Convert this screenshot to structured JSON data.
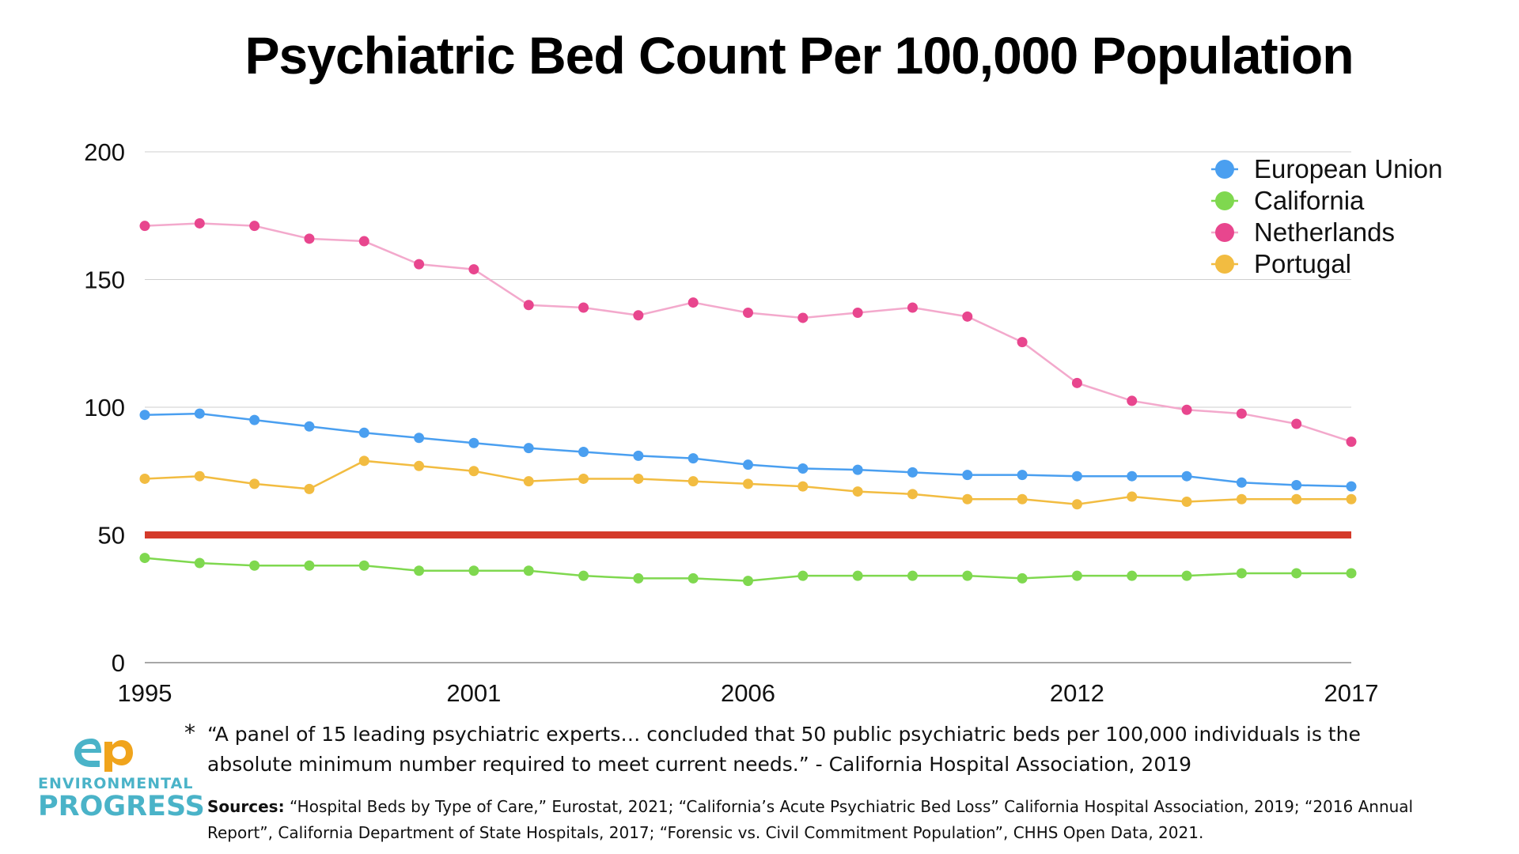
{
  "chart_data": {
    "type": "line",
    "title": "Psychiatric Bed Count Per 100,000 Population",
    "xlabel": "",
    "ylabel": "",
    "x": [
      1995,
      1996,
      1997,
      1998,
      1999,
      2000,
      2001,
      2002,
      2003,
      2004,
      2005,
      2006,
      2007,
      2008,
      2009,
      2010,
      2011,
      2012,
      2013,
      2014,
      2015,
      2016,
      2017
    ],
    "x_tick_labels": [
      "1995",
      "2001",
      "2006",
      "2012",
      "2017"
    ],
    "y_tick_labels": [
      "0",
      "50",
      "100",
      "150",
      "200"
    ],
    "ylim": [
      0,
      200
    ],
    "grid": true,
    "legend_position": "top-right",
    "series": [
      {
        "name": "European Union",
        "color": "#4a9ff0",
        "values": [
          97,
          97.5,
          95,
          92.5,
          90,
          88,
          86,
          84,
          82.5,
          81,
          80,
          77.5,
          76,
          75.5,
          74.5,
          73.5,
          73.5,
          73,
          73,
          73,
          70.5,
          69.5,
          69
        ]
      },
      {
        "name": "California",
        "color": "#7fd84f",
        "values": [
          41,
          39,
          38,
          38,
          38,
          36,
          36,
          36,
          34,
          33,
          33,
          32,
          34,
          34,
          34,
          34,
          33,
          34,
          34,
          34,
          35,
          35,
          35
        ]
      },
      {
        "name": "Netherlands",
        "color": "#e8468e",
        "line_color": "#f3a9cc",
        "values": [
          171,
          172,
          171,
          166,
          165,
          156,
          154,
          140,
          139,
          136,
          141,
          137,
          135,
          137,
          139,
          135.5,
          125.5,
          109.5,
          102.5,
          99,
          97.5,
          93.5,
          86.5
        ]
      },
      {
        "name": "Portugal",
        "color": "#f2bc41",
        "values": [
          72,
          73,
          70,
          68,
          79,
          77,
          75,
          71,
          72,
          72,
          71,
          70,
          69,
          67,
          66,
          64,
          64,
          62,
          65,
          63,
          64,
          64,
          64
        ]
      }
    ],
    "reference_line": {
      "value": 50,
      "color": "#d43a2a"
    }
  },
  "footnote": {
    "asterisk": "*",
    "line1": "“A panel of 15 leading psychiatric experts… concluded that 50 public psychiatric beds per 100,000 individuals is the",
    "line2": "absolute minimum number required to meet current needs.” - California Hospital Association, 2019"
  },
  "sources": {
    "lead": "Sources:",
    "line1": "“Hospital Beds by Type of Care,” Eurostat, 2021; “California’s Acute Psychiatric Bed Loss” California Hospital Association, 2019; “2016 Annual",
    "line2": "Report”, California Department of State Hospitals, 2017; “Forensic vs. Civil Commitment Population”, CHHS Open Data, 2021."
  },
  "logo": {
    "line1": "ENVIRONMENTAL",
    "line2": "PROGRESS",
    "mark": "ep",
    "colors": {
      "teal": "#4ab3c8",
      "orange": "#f0a41c"
    }
  }
}
